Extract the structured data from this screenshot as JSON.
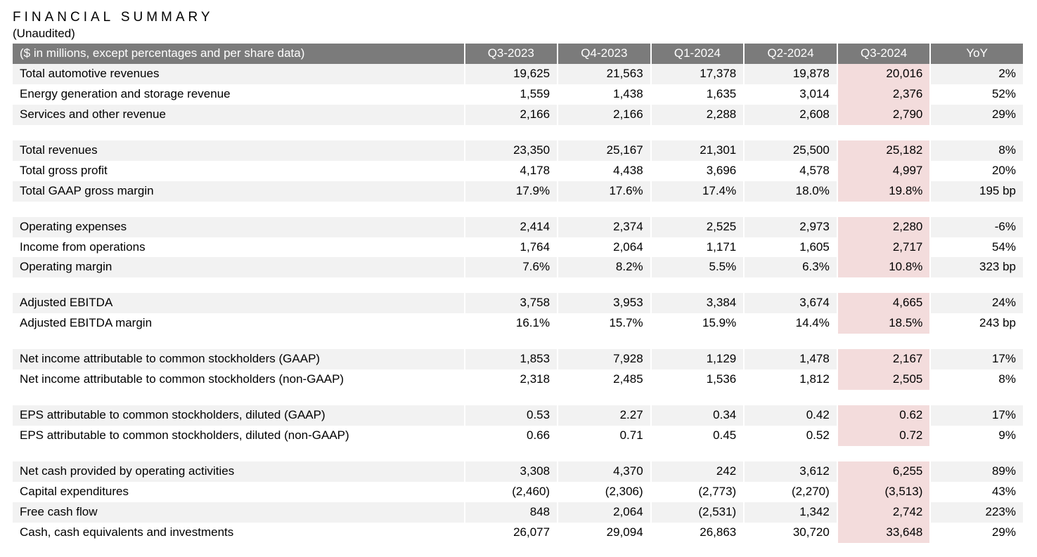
{
  "title": "FINANCIAL SUMMARY",
  "subtitle": "(Unaudited)",
  "table": {
    "header_label": "($ in millions, except percentages and per share data)",
    "columns": [
      "Q3-2023",
      "Q4-2023",
      "Q1-2024",
      "Q2-2024",
      "Q3-2024",
      "YoY"
    ],
    "highlight_column_index": 4,
    "colors": {
      "header_bg": "#7b7b7b",
      "header_text": "#ffffff",
      "stripe_bg": "#f2f2f2",
      "highlight_bg": "#f3dcdc",
      "background": "#ffffff",
      "text": "#000000"
    },
    "rows": [
      {
        "kind": "data",
        "stripe": true,
        "label": "Total automotive revenues",
        "cells": [
          "19,625",
          "21,563",
          "17,378",
          "19,878",
          "20,016",
          "2%"
        ]
      },
      {
        "kind": "data",
        "stripe": false,
        "label": "Energy generation and storage revenue",
        "cells": [
          "1,559",
          "1,438",
          "1,635",
          "3,014",
          "2,376",
          "52%"
        ]
      },
      {
        "kind": "data",
        "stripe": true,
        "label": "Services and other revenue",
        "cells": [
          "2,166",
          "2,166",
          "2,288",
          "2,608",
          "2,790",
          "29%"
        ]
      },
      {
        "kind": "spacer"
      },
      {
        "kind": "data",
        "stripe": true,
        "label": "Total revenues",
        "cells": [
          "23,350",
          "25,167",
          "21,301",
          "25,500",
          "25,182",
          "8%"
        ]
      },
      {
        "kind": "data",
        "stripe": false,
        "label": "Total gross profit",
        "cells": [
          "4,178",
          "4,438",
          "3,696",
          "4,578",
          "4,997",
          "20%"
        ]
      },
      {
        "kind": "data",
        "stripe": true,
        "label": "Total GAAP gross margin",
        "cells": [
          "17.9%",
          "17.6%",
          "17.4%",
          "18.0%",
          "19.8%",
          "195 bp"
        ]
      },
      {
        "kind": "spacer"
      },
      {
        "kind": "data",
        "stripe": true,
        "label": "Operating expenses",
        "cells": [
          "2,414",
          "2,374",
          "2,525",
          "2,973",
          "2,280",
          "-6%"
        ]
      },
      {
        "kind": "data",
        "stripe": false,
        "label": "Income from operations",
        "cells": [
          "1,764",
          "2,064",
          "1,171",
          "1,605",
          "2,717",
          "54%"
        ]
      },
      {
        "kind": "data",
        "stripe": true,
        "label": "Operating margin",
        "cells": [
          "7.6%",
          "8.2%",
          "5.5%",
          "6.3%",
          "10.8%",
          "323 bp"
        ]
      },
      {
        "kind": "spacer"
      },
      {
        "kind": "data",
        "stripe": true,
        "label": "Adjusted EBITDA",
        "cells": [
          "3,758",
          "3,953",
          "3,384",
          "3,674",
          "4,665",
          "24%"
        ]
      },
      {
        "kind": "data",
        "stripe": false,
        "label": "Adjusted EBITDA margin",
        "cells": [
          "16.1%",
          "15.7%",
          "15.9%",
          "14.4%",
          "18.5%",
          "243 bp"
        ]
      },
      {
        "kind": "spacer"
      },
      {
        "kind": "data",
        "stripe": true,
        "label": "Net income attributable to common stockholders (GAAP)",
        "cells": [
          "1,853",
          "7,928",
          "1,129",
          "1,478",
          "2,167",
          "17%"
        ]
      },
      {
        "kind": "data",
        "stripe": false,
        "label": "Net income attributable to common stockholders (non-GAAP)",
        "cells": [
          "2,318",
          "2,485",
          "1,536",
          "1,812",
          "2,505",
          "8%"
        ]
      },
      {
        "kind": "spacer"
      },
      {
        "kind": "data",
        "stripe": true,
        "label": "EPS attributable to common stockholders, diluted (GAAP)",
        "cells": [
          "0.53",
          "2.27",
          "0.34",
          "0.42",
          "0.62",
          "17%"
        ]
      },
      {
        "kind": "data",
        "stripe": false,
        "label": "EPS attributable to common stockholders, diluted (non-GAAP)",
        "cells": [
          "0.66",
          "0.71",
          "0.45",
          "0.52",
          "0.72",
          "9%"
        ]
      },
      {
        "kind": "spacer"
      },
      {
        "kind": "data",
        "stripe": true,
        "label": "Net cash provided by operating activities",
        "cells": [
          "3,308",
          "4,370",
          "242",
          "3,612",
          "6,255",
          "89%"
        ]
      },
      {
        "kind": "data",
        "stripe": false,
        "label": "Capital expenditures",
        "cells": [
          "(2,460)",
          "(2,306)",
          "(2,773)",
          "(2,270)",
          "(3,513)",
          "43%"
        ]
      },
      {
        "kind": "data",
        "stripe": true,
        "label": "Free cash flow",
        "cells": [
          "848",
          "2,064",
          "(2,531)",
          "1,342",
          "2,742",
          "223%"
        ]
      },
      {
        "kind": "data",
        "stripe": false,
        "label": "Cash, cash equivalents and investments",
        "cells": [
          "26,077",
          "29,094",
          "26,863",
          "30,720",
          "33,648",
          "29%"
        ]
      }
    ]
  }
}
